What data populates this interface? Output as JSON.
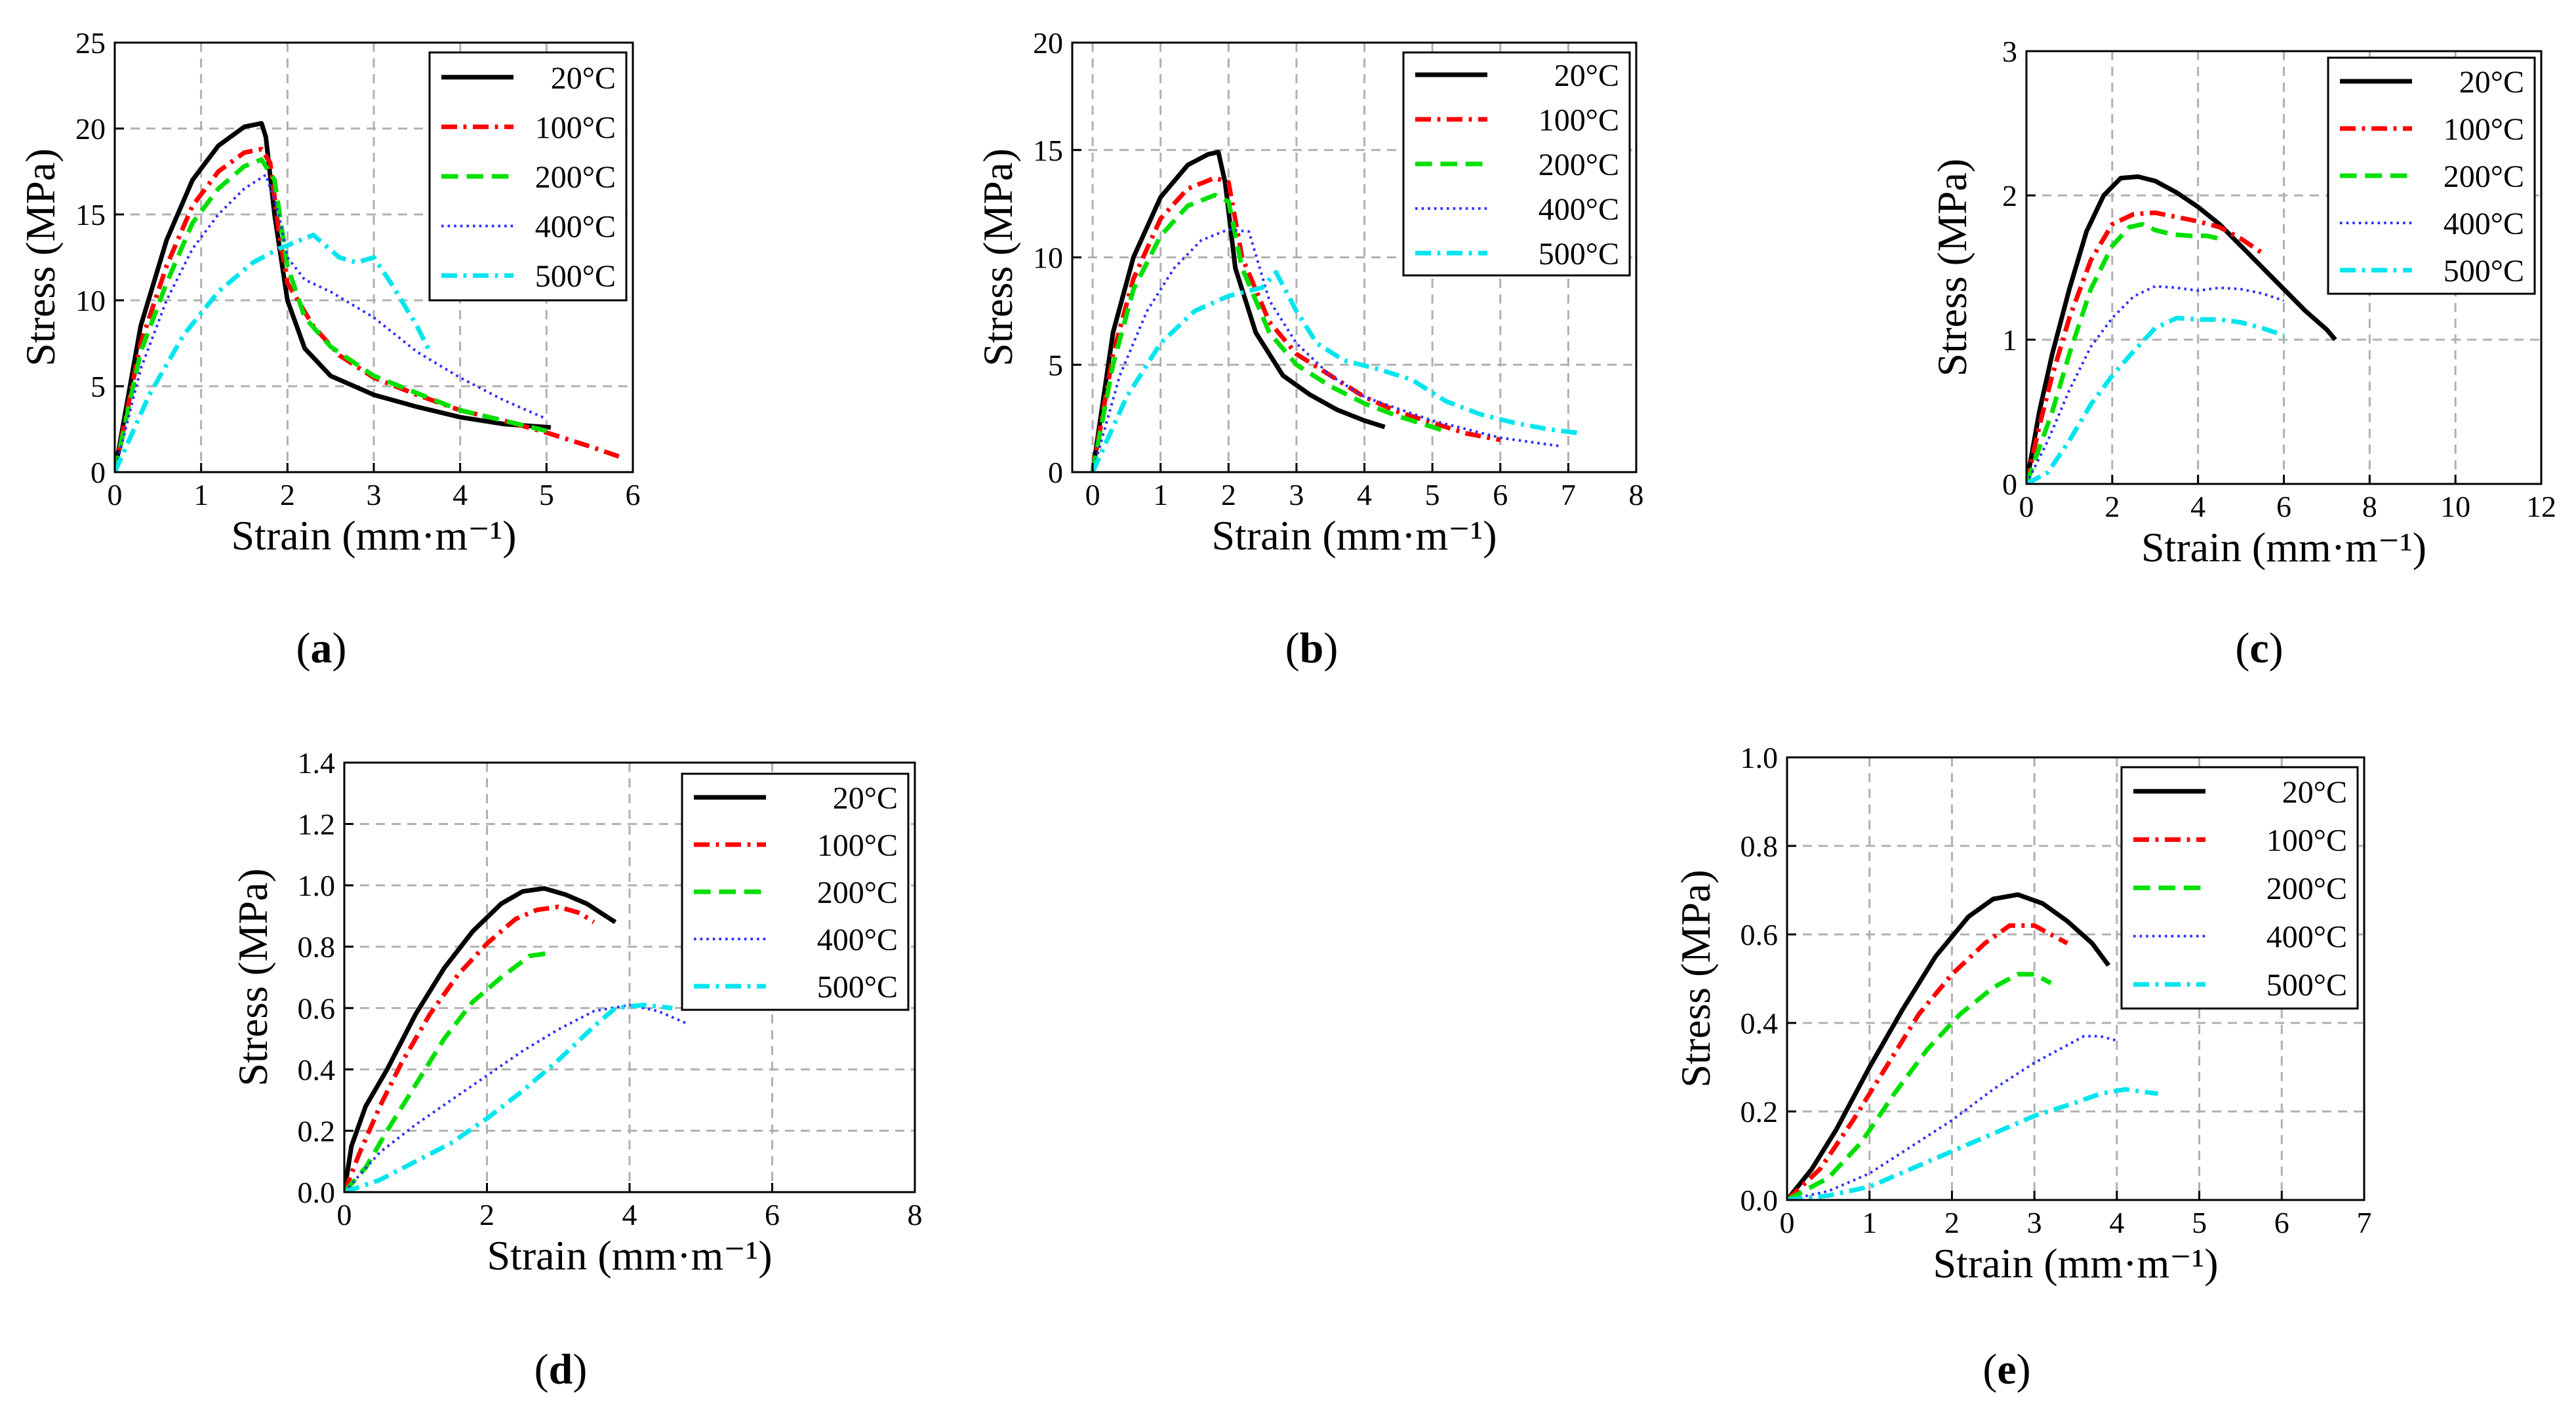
{
  "figure": {
    "colors": {
      "20°C": "#000000",
      "100°C": "#ff0000",
      "200°C": "#00e000",
      "400°C": "#3030ff",
      "500°C": "#00e5ee"
    }
  },
  "chart_data": [
    {
      "type": "line",
      "panel_label": "a",
      "xlabel": "Strain (mm·m⁻¹)",
      "ylabel": "Stress (MPa)",
      "xlim": [
        0,
        6
      ],
      "ylim": [
        0,
        25
      ],
      "xticks": [
        0,
        1,
        2,
        3,
        4,
        5,
        6
      ],
      "yticks": [
        0,
        5,
        10,
        15,
        20,
        25
      ],
      "grid": true,
      "legend": "top-right",
      "series": [
        {
          "name": "20°C",
          "style": "solid",
          "x": [
            0,
            0.3,
            0.6,
            0.9,
            1.2,
            1.5,
            1.7,
            1.75,
            1.85,
            2.0,
            2.2,
            2.5,
            3.0,
            3.5,
            4.0,
            4.5,
            5.05
          ],
          "y": [
            0,
            8.5,
            13.5,
            17,
            19,
            20.1,
            20.3,
            19.5,
            15,
            10,
            7.2,
            5.6,
            4.5,
            3.8,
            3.2,
            2.8,
            2.6
          ]
        },
        {
          "name": "100°C",
          "style": "dashdot",
          "x": [
            0,
            0.3,
            0.6,
            0.9,
            1.2,
            1.5,
            1.7,
            1.8,
            1.9,
            2.0,
            2.3,
            2.6,
            3.0,
            3.5,
            4.0,
            4.5,
            5.0,
            5.5,
            5.9
          ],
          "y": [
            0,
            7.5,
            12,
            15.5,
            17.5,
            18.6,
            18.8,
            18,
            14,
            11,
            8.5,
            6.8,
            5.5,
            4.5,
            3.6,
            3.0,
            2.3,
            1.5,
            0.8
          ]
        },
        {
          "name": "200°C",
          "style": "dashed",
          "x": [
            0,
            0.3,
            0.6,
            0.9,
            1.2,
            1.5,
            1.7,
            1.85,
            2.0,
            2.2,
            2.5,
            3.0,
            3.5,
            4.0,
            4.5,
            5.0
          ],
          "y": [
            0,
            7,
            11,
            14.5,
            16.5,
            17.8,
            18.2,
            17,
            12,
            9,
            7.3,
            5.6,
            4.6,
            3.6,
            3.0,
            2.4
          ]
        },
        {
          "name": "400°C",
          "style": "dotted",
          "x": [
            0,
            0.3,
            0.6,
            0.9,
            1.2,
            1.5,
            1.75,
            1.9,
            2.0,
            2.2,
            2.5,
            3.0,
            3.5,
            4.0,
            4.5,
            5.0
          ],
          "y": [
            0,
            6,
            10,
            13,
            15,
            16.5,
            17.3,
            15,
            12.5,
            11.2,
            10.5,
            9,
            7,
            5.5,
            4.2,
            3.1
          ]
        },
        {
          "name": "500°C",
          "style": "dashdot",
          "x": [
            0,
            0.4,
            0.8,
            1.2,
            1.6,
            1.9,
            2.0,
            2.3,
            2.6,
            2.8,
            3.0,
            3.2,
            3.5,
            3.65
          ],
          "y": [
            0,
            4.5,
            8,
            10.5,
            12.2,
            13,
            13.2,
            13.8,
            12.5,
            12.2,
            12.5,
            11,
            8.5,
            7
          ]
        }
      ]
    },
    {
      "type": "line",
      "panel_label": "b",
      "xlabel": "Strain (mm·m⁻¹)",
      "ylabel": "Stress (MPa)",
      "xlim": [
        -0.3,
        8
      ],
      "ylim": [
        0,
        20
      ],
      "xticks": [
        0,
        1,
        2,
        3,
        4,
        5,
        6,
        7,
        8
      ],
      "yticks": [
        0,
        5,
        10,
        15,
        20
      ],
      "grid": true,
      "legend": "top-right",
      "series": [
        {
          "name": "20°C",
          "style": "solid",
          "x": [
            0,
            0.3,
            0.6,
            1.0,
            1.4,
            1.7,
            1.85,
            1.95,
            2.1,
            2.4,
            2.8,
            3.2,
            3.6,
            4.0,
            4.3
          ],
          "y": [
            0,
            6.5,
            10,
            12.8,
            14.3,
            14.8,
            14.9,
            13.5,
            9.5,
            6.5,
            4.5,
            3.6,
            2.9,
            2.4,
            2.1
          ]
        },
        {
          "name": "100°C",
          "style": "dashdot",
          "x": [
            0,
            0.3,
            0.6,
            1.0,
            1.4,
            1.8,
            2.0,
            2.2,
            2.6,
            3.0,
            3.5,
            4.0,
            4.5,
            5.0,
            5.5,
            6.0
          ],
          "y": [
            0,
            5.5,
            9,
            11.8,
            13.2,
            13.7,
            13.5,
            10,
            7,
            5.5,
            4.5,
            3.5,
            2.8,
            2.3,
            1.8,
            1.5
          ]
        },
        {
          "name": "200°C",
          "style": "dashed",
          "x": [
            0,
            0.3,
            0.6,
            1.0,
            1.4,
            1.8,
            2.0,
            2.2,
            2.6,
            3.0,
            3.5,
            4.0,
            4.5,
            5.0,
            5.2
          ],
          "y": [
            0,
            5,
            8.5,
            11,
            12.4,
            12.9,
            12.6,
            9.5,
            6.5,
            5,
            4,
            3.2,
            2.6,
            2.1,
            1.9
          ]
        },
        {
          "name": "400°C",
          "style": "dotted",
          "x": [
            0,
            0.4,
            0.8,
            1.2,
            1.6,
            2.0,
            2.3,
            2.6,
            3.0,
            3.5,
            4.0,
            5.0,
            6.0,
            6.9
          ],
          "y": [
            0,
            4.5,
            7.5,
            9.5,
            10.8,
            11.3,
            11.2,
            8,
            6,
            4.5,
            3.5,
            2.4,
            1.6,
            1.2
          ]
        },
        {
          "name": "500°C",
          "style": "dashdot",
          "x": [
            0,
            0.5,
            1.0,
            1.5,
            2.0,
            2.5,
            2.7,
            3.0,
            3.3,
            3.7,
            4.2,
            4.7,
            5.2,
            5.7,
            6.2,
            6.7,
            7.2
          ],
          "y": [
            0,
            3.5,
            6,
            7.5,
            8.2,
            8.6,
            9.3,
            7.5,
            6.0,
            5.2,
            4.8,
            4.3,
            3.3,
            2.7,
            2.3,
            2.0,
            1.8
          ]
        }
      ]
    },
    {
      "type": "line",
      "panel_label": "c",
      "xlabel": "Strain (mm·m⁻¹)",
      "ylabel": "Stress (MPa)",
      "xlim": [
        0,
        12
      ],
      "ylim": [
        0,
        3
      ],
      "xticks": [
        0,
        2,
        4,
        6,
        8,
        10,
        12
      ],
      "yticks": [
        0,
        1,
        2,
        3
      ],
      "grid": true,
      "legend": "top-right",
      "series": [
        {
          "name": "20°C",
          "style": "solid",
          "x": [
            0,
            0.3,
            0.6,
            1.0,
            1.4,
            1.8,
            2.2,
            2.6,
            3.0,
            3.5,
            4.0,
            4.5,
            5.0,
            5.5,
            6.0,
            6.5,
            7.0,
            7.2
          ],
          "y": [
            0,
            0.5,
            0.9,
            1.35,
            1.75,
            2.0,
            2.12,
            2.13,
            2.1,
            2.02,
            1.92,
            1.8,
            1.65,
            1.5,
            1.35,
            1.2,
            1.07,
            1.0
          ]
        },
        {
          "name": "100°C",
          "style": "dashdot",
          "x": [
            0,
            0.3,
            0.6,
            1.0,
            1.5,
            2.0,
            2.5,
            3.0,
            3.5,
            4.0,
            4.5,
            5.0,
            5.5
          ],
          "y": [
            0,
            0.4,
            0.75,
            1.15,
            1.55,
            1.8,
            1.87,
            1.88,
            1.85,
            1.82,
            1.78,
            1.7,
            1.6
          ]
        },
        {
          "name": "200°C",
          "style": "dashed",
          "x": [
            0,
            0.3,
            0.6,
            1.0,
            1.5,
            2.0,
            2.4,
            2.7,
            3.0,
            3.4,
            3.8,
            4.2,
            4.5
          ],
          "y": [
            0,
            0.25,
            0.5,
            0.9,
            1.35,
            1.65,
            1.78,
            1.8,
            1.76,
            1.73,
            1.72,
            1.72,
            1.7
          ]
        },
        {
          "name": "400°C",
          "style": "dotted",
          "x": [
            0,
            0.5,
            1.0,
            1.5,
            2.0,
            2.5,
            3.0,
            3.5,
            4.0,
            4.5,
            5.0,
            5.5,
            6.0
          ],
          "y": [
            0,
            0.3,
            0.65,
            0.95,
            1.15,
            1.3,
            1.37,
            1.36,
            1.34,
            1.36,
            1.35,
            1.32,
            1.27
          ]
        },
        {
          "name": "500°C",
          "style": "dashdot",
          "x": [
            0,
            0.5,
            1.0,
            1.5,
            2.0,
            2.5,
            3.0,
            3.5,
            4.0,
            4.5,
            5.0,
            5.5,
            6.0
          ],
          "y": [
            0,
            0.08,
            0.3,
            0.55,
            0.75,
            0.92,
            1.08,
            1.15,
            1.14,
            1.14,
            1.12,
            1.08,
            1.03
          ]
        }
      ]
    },
    {
      "type": "line",
      "panel_label": "d",
      "xlabel": "Strain (mm·m⁻¹)",
      "ylabel": "Stress (MPa)",
      "xlim": [
        0,
        8
      ],
      "ylim": [
        0,
        1.4
      ],
      "xticks": [
        0,
        2,
        4,
        6,
        8
      ],
      "yticks": [
        0.0,
        0.2,
        0.4,
        0.6,
        0.8,
        1.0,
        1.2,
        1.4
      ],
      "grid": true,
      "legend": "top-right",
      "series": [
        {
          "name": "20°C",
          "style": "solid",
          "x": [
            0,
            0.1,
            0.3,
            0.6,
            1.0,
            1.4,
            1.8,
            2.2,
            2.5,
            2.8,
            3.1,
            3.4,
            3.6,
            3.8
          ],
          "y": [
            0,
            0.15,
            0.28,
            0.4,
            0.58,
            0.73,
            0.85,
            0.94,
            0.98,
            0.99,
            0.97,
            0.94,
            0.91,
            0.88
          ]
        },
        {
          "name": "100°C",
          "style": "dashdot",
          "x": [
            0,
            0.2,
            0.5,
            0.8,
            1.2,
            1.6,
            2.0,
            2.4,
            2.7,
            3.0,
            3.3,
            3.5
          ],
          "y": [
            0,
            0.12,
            0.28,
            0.42,
            0.58,
            0.71,
            0.81,
            0.89,
            0.92,
            0.93,
            0.91,
            0.88
          ]
        },
        {
          "name": "200°C",
          "style": "dashed",
          "x": [
            0,
            0.3,
            0.6,
            1.0,
            1.4,
            1.8,
            2.2,
            2.6,
            2.9
          ],
          "y": [
            0,
            0.08,
            0.2,
            0.35,
            0.5,
            0.62,
            0.7,
            0.77,
            0.78
          ]
        },
        {
          "name": "400°C",
          "style": "dotted",
          "x": [
            0,
            0.5,
            1.0,
            1.5,
            2.0,
            2.5,
            3.0,
            3.5,
            4.0,
            4.4,
            4.8
          ],
          "y": [
            0,
            0.13,
            0.22,
            0.3,
            0.38,
            0.46,
            0.53,
            0.59,
            0.61,
            0.59,
            0.55
          ]
        },
        {
          "name": "500°C",
          "style": "dashdot",
          "x": [
            0,
            0.5,
            1.0,
            1.5,
            2.0,
            2.5,
            3.0,
            3.5,
            3.8,
            4.2,
            4.6
          ],
          "y": [
            0,
            0.04,
            0.1,
            0.16,
            0.24,
            0.33,
            0.43,
            0.54,
            0.6,
            0.61,
            0.6
          ]
        }
      ]
    },
    {
      "type": "line",
      "panel_label": "e",
      "xlabel": "Strain (mm·m⁻¹)",
      "ylabel": "Stress (MPa)",
      "xlim": [
        0,
        7
      ],
      "ylim": [
        0,
        1.0
      ],
      "xticks": [
        0,
        1,
        2,
        3,
        4,
        5,
        6,
        7
      ],
      "yticks": [
        0.0,
        0.2,
        0.4,
        0.6,
        0.8,
        1.0
      ],
      "grid": true,
      "legend": "top-right",
      "series": [
        {
          "name": "20°C",
          "style": "solid",
          "x": [
            0,
            0.3,
            0.6,
            1.0,
            1.4,
            1.8,
            2.2,
            2.5,
            2.8,
            3.1,
            3.4,
            3.7,
            3.9
          ],
          "y": [
            0,
            0.07,
            0.16,
            0.3,
            0.43,
            0.55,
            0.64,
            0.68,
            0.69,
            0.67,
            0.63,
            0.58,
            0.53
          ]
        },
        {
          "name": "100°C",
          "style": "dashdot",
          "x": [
            0,
            0.4,
            0.8,
            1.2,
            1.6,
            2.0,
            2.4,
            2.7,
            3.0,
            3.2,
            3.4
          ],
          "y": [
            0,
            0.07,
            0.18,
            0.3,
            0.42,
            0.51,
            0.58,
            0.62,
            0.62,
            0.6,
            0.58
          ]
        },
        {
          "name": "200°C",
          "style": "dashed",
          "x": [
            0,
            0.5,
            0.9,
            1.3,
            1.7,
            2.1,
            2.5,
            2.8,
            3.0,
            3.2
          ],
          "y": [
            0,
            0.05,
            0.13,
            0.24,
            0.34,
            0.42,
            0.48,
            0.51,
            0.51,
            0.49
          ]
        },
        {
          "name": "400°C",
          "style": "dotted",
          "x": [
            0,
            0.5,
            1.0,
            1.5,
            2.0,
            2.5,
            3.0,
            3.3,
            3.6,
            3.8,
            4.0
          ],
          "y": [
            0,
            0.02,
            0.06,
            0.12,
            0.18,
            0.25,
            0.31,
            0.34,
            0.37,
            0.37,
            0.36
          ]
        },
        {
          "name": "500°C",
          "style": "dashdot",
          "x": [
            0,
            0.5,
            1.0,
            1.5,
            2.0,
            2.5,
            3.0,
            3.5,
            3.8,
            4.1,
            4.5
          ],
          "y": [
            0,
            0.01,
            0.03,
            0.07,
            0.11,
            0.15,
            0.19,
            0.22,
            0.24,
            0.25,
            0.24
          ]
        }
      ]
    }
  ]
}
